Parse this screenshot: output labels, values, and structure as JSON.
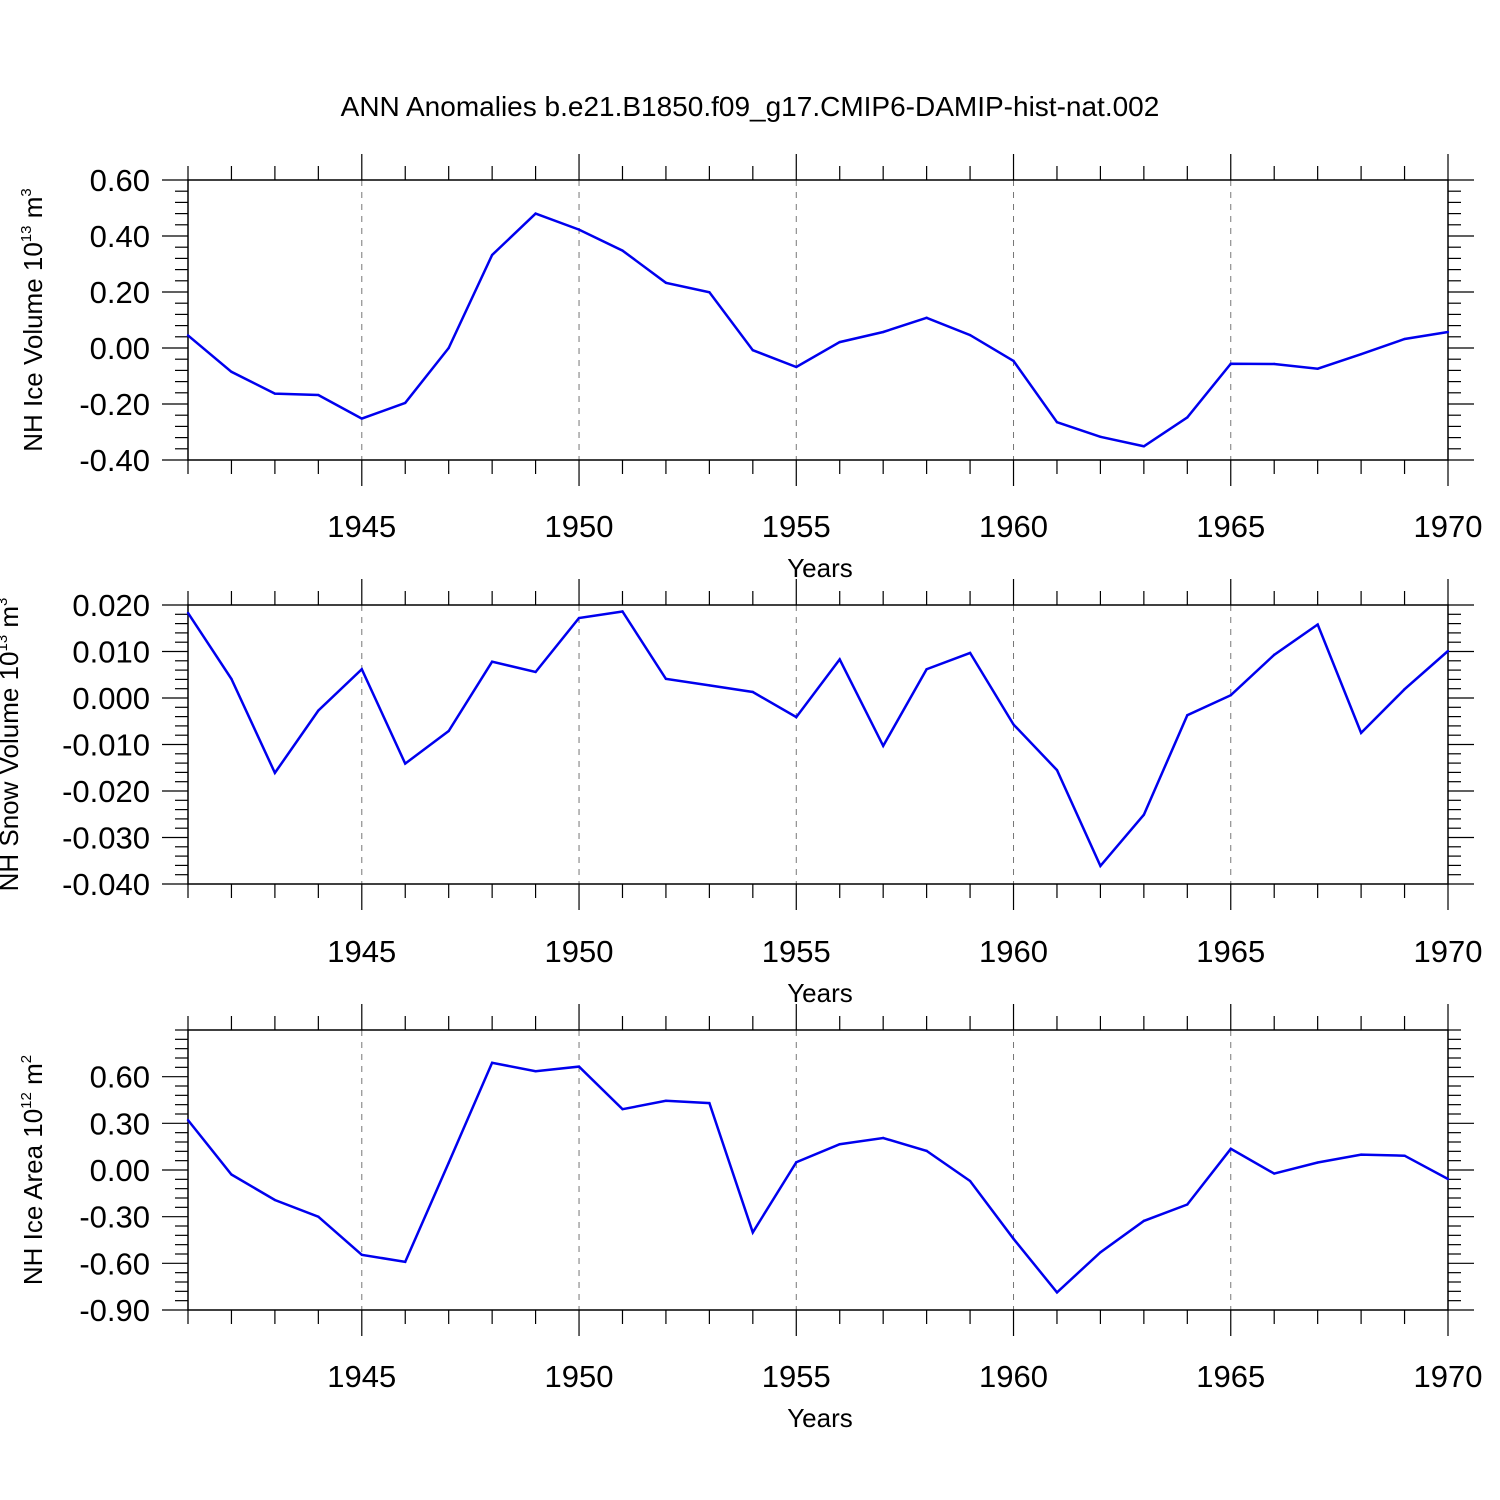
{
  "title": "ANN Anomalies b.e21.B1850.f09_g17.CMIP6-DAMIP-hist-nat.002",
  "chart_data": [
    {
      "type": "line",
      "ylabel": "NH Ice Volume 10^13 m^3",
      "ylabel_base": "NH Ice Volume 10",
      "ylabel_exp": "13",
      "ylabel_unit": "m",
      "ylabel_unit_exp": "3",
      "xlabel": "Years",
      "xlim": [
        1941,
        1970
      ],
      "ylim": [
        -0.4,
        0.6
      ],
      "yticks": [
        -0.4,
        -0.2,
        0.0,
        0.2,
        0.4,
        0.6
      ],
      "ytick_labels": [
        "-0.40",
        "-0.20",
        "0.00",
        "0.20",
        "0.40",
        "0.60"
      ],
      "xticks": [
        1945,
        1950,
        1955,
        1960,
        1965,
        1970
      ],
      "xtick_labels": [
        "1945",
        "1950",
        "1955",
        "1960",
        "1965",
        "1970"
      ],
      "color": "#0000ee",
      "grid": "vertical-dashed",
      "series": [
        {
          "x": [
            1941,
            1942,
            1943,
            1944,
            1945,
            1946,
            1947,
            1948,
            1949,
            1950,
            1951,
            1952,
            1953,
            1954,
            1955,
            1956,
            1957,
            1958,
            1959,
            1960,
            1961,
            1962,
            1963,
            1964,
            1965,
            1966,
            1967,
            1968,
            1969,
            1970
          ],
          "values": [
            0.045,
            -0.085,
            -0.163,
            -0.168,
            -0.252,
            -0.196,
            0.0,
            0.332,
            0.48,
            0.423,
            0.348,
            0.233,
            0.199,
            -0.008,
            -0.068,
            0.021,
            0.057,
            0.108,
            0.046,
            -0.046,
            -0.265,
            -0.317,
            -0.351,
            -0.248,
            -0.056,
            -0.057,
            -0.074,
            -0.022,
            0.032,
            0.057
          ]
        }
      ]
    },
    {
      "type": "line",
      "ylabel": "NH Snow Volume 10^13 m^3",
      "ylabel_base": "NH Snow Volume 10",
      "ylabel_exp": "13",
      "ylabel_unit": "m",
      "ylabel_unit_exp": "3",
      "xlabel": "Years",
      "xlim": [
        1941,
        1970
      ],
      "ylim": [
        -0.04,
        0.02
      ],
      "yticks": [
        -0.04,
        -0.03,
        -0.02,
        -0.01,
        0.0,
        0.01,
        0.02
      ],
      "ytick_labels": [
        "-0.040",
        "-0.030",
        "-0.020",
        "-0.010",
        "0.000",
        "0.010",
        "0.020"
      ],
      "xticks": [
        1945,
        1950,
        1955,
        1960,
        1965,
        1970
      ],
      "xtick_labels": [
        "1945",
        "1950",
        "1955",
        "1960",
        "1965",
        "1970"
      ],
      "color": "#0000ee",
      "grid": "vertical-dashed",
      "series": [
        {
          "x": [
            1941,
            1942,
            1943,
            1944,
            1945,
            1946,
            1947,
            1948,
            1949,
            1950,
            1951,
            1952,
            1953,
            1954,
            1955,
            1956,
            1957,
            1958,
            1959,
            1960,
            1961,
            1962,
            1963,
            1964,
            1965,
            1966,
            1967,
            1968,
            1969,
            1970
          ],
          "values": [
            0.0183,
            0.0041,
            -0.0161,
            -0.0027,
            0.0062,
            -0.0141,
            -0.0071,
            0.0078,
            0.0056,
            0.0172,
            0.0186,
            0.0041,
            0.0027,
            0.0013,
            -0.0041,
            0.0083,
            -0.0103,
            0.0062,
            0.0097,
            -0.0057,
            -0.0155,
            -0.0361,
            -0.0251,
            -0.0037,
            0.0006,
            0.0093,
            0.0158,
            -0.0075,
            0.0019,
            0.0101
          ]
        }
      ]
    },
    {
      "type": "line",
      "ylabel": "NH Ice Area 10^12 m^2",
      "ylabel_base": "NH Ice Area 10",
      "ylabel_exp": "12",
      "ylabel_unit": "m",
      "ylabel_unit_exp": "2",
      "xlabel": "Years",
      "xlim": [
        1941,
        1970
      ],
      "ylim": [
        -0.9,
        0.9
      ],
      "yticks": [
        -0.9,
        -0.6,
        -0.3,
        0.0,
        0.3,
        0.6
      ],
      "ytick_labels": [
        "-0.90",
        "-0.60",
        "-0.30",
        "0.00",
        "0.30",
        "0.60"
      ],
      "xticks": [
        1945,
        1950,
        1955,
        1960,
        1965,
        1970
      ],
      "xtick_labels": [
        "1945",
        "1950",
        "1955",
        "1960",
        "1965",
        "1970"
      ],
      "color": "#0000ee",
      "grid": "vertical-dashed",
      "series": [
        {
          "x": [
            1941,
            1942,
            1943,
            1944,
            1945,
            1946,
            1947,
            1948,
            1949,
            1950,
            1951,
            1952,
            1953,
            1954,
            1955,
            1956,
            1957,
            1958,
            1959,
            1960,
            1961,
            1962,
            1963,
            1964,
            1965,
            1966,
            1967,
            1968,
            1969,
            1970
          ],
          "values": [
            0.321,
            -0.029,
            -0.193,
            -0.3,
            -0.545,
            -0.591,
            0.046,
            0.689,
            0.635,
            0.665,
            0.391,
            0.445,
            0.43,
            -0.401,
            0.05,
            0.166,
            0.206,
            0.123,
            -0.071,
            -0.442,
            -0.787,
            -0.529,
            -0.327,
            -0.222,
            0.136,
            -0.023,
            0.048,
            0.099,
            0.092,
            -0.058
          ]
        }
      ]
    }
  ]
}
